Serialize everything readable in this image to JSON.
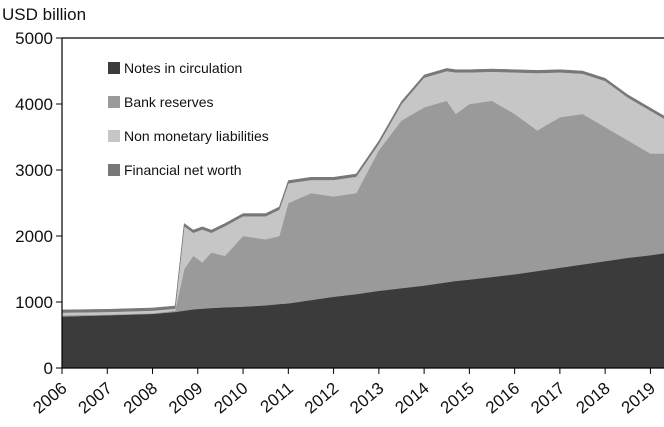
{
  "chart_data": {
    "type": "stacked_area",
    "y_label": "USD billion",
    "x": [
      2006,
      2007,
      2008,
      2008.5,
      2008.7,
      2008.9,
      2009.1,
      2009.3,
      2009.6,
      2010,
      2010.5,
      2010.8,
      2011,
      2011.5,
      2012,
      2012.5,
      2013,
      2013.5,
      2014,
      2014.5,
      2014.7,
      2015,
      2015.5,
      2016,
      2016.5,
      2017,
      2017.5,
      2018,
      2018.5,
      2019,
      2019.3
    ],
    "series": [
      {
        "name": "Notes in circulation",
        "color": "#3b3b3b",
        "values": [
          780,
          800,
          820,
          850,
          870,
          890,
          900,
          910,
          920,
          930,
          950,
          970,
          980,
          1030,
          1080,
          1120,
          1170,
          1210,
          1250,
          1300,
          1320,
          1340,
          1380,
          1420,
          1470,
          1520,
          1570,
          1620,
          1670,
          1710,
          1740
        ]
      },
      {
        "name": "Bank reserves",
        "color": "#9a9a9a",
        "values": [
          20,
          10,
          10,
          20,
          630,
          810,
          700,
          840,
          780,
          1070,
          1000,
          1030,
          1520,
          1620,
          1520,
          1530,
          2130,
          2540,
          2700,
          2750,
          2530,
          2660,
          2670,
          2430,
          2130,
          2280,
          2280,
          2030,
          1780,
          1540,
          1510
        ]
      },
      {
        "name": "Non monetary liabilities",
        "color": "#c6c6c6",
        "values": [
          40,
          40,
          40,
          30,
          650,
          350,
          500,
          300,
          450,
          300,
          350,
          400,
          300,
          200,
          250,
          250,
          100,
          250,
          450,
          450,
          630,
          480,
          440,
          630,
          870,
          680,
          610,
          700,
          650,
          650,
          530
        ]
      },
      {
        "name": "Financial net worth",
        "color": "#787878",
        "values": [
          40,
          40,
          40,
          40,
          40,
          40,
          40,
          40,
          40,
          40,
          40,
          40,
          40,
          40,
          40,
          40,
          40,
          40,
          40,
          40,
          40,
          40,
          40,
          40,
          40,
          40,
          40,
          40,
          40,
          40,
          40
        ]
      }
    ],
    "xlim": [
      2006,
      2019.3
    ],
    "xticks": [
      2006,
      2007,
      2008,
      2009,
      2010,
      2011,
      2012,
      2013,
      2014,
      2015,
      2016,
      2017,
      2018,
      2019
    ],
    "ylim": [
      0,
      5000
    ],
    "yticks": [
      0,
      1000,
      2000,
      3000,
      4000,
      5000
    ],
    "legend": "upper left"
  }
}
